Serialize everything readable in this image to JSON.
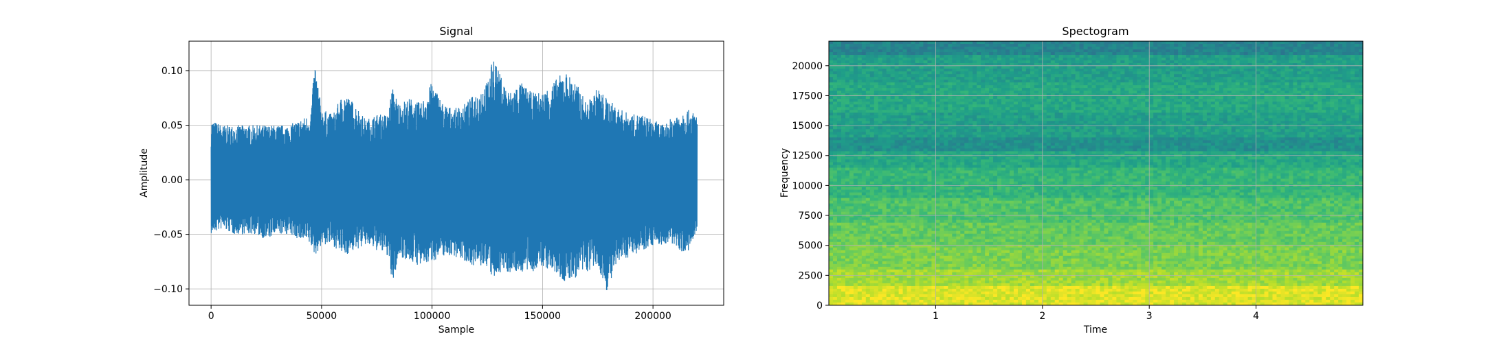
{
  "chart_data": [
    {
      "type": "line",
      "title": "Signal",
      "xlabel": "Sample",
      "ylabel": "Amplitude",
      "xlim": [
        -10000,
        232000
      ],
      "ylim": [
        -0.115,
        0.127
      ],
      "xticks": [
        0,
        50000,
        100000,
        150000,
        200000
      ],
      "xtick_labels": [
        "0",
        "50000",
        "100000",
        "150000",
        "200000"
      ],
      "yticks": [
        -0.1,
        -0.05,
        0.0,
        0.05,
        0.1
      ],
      "ytick_labels": [
        "−0.10",
        "−0.05",
        "0.00",
        "0.05",
        "0.10"
      ],
      "grid": true,
      "line_color": "#1f77b4",
      "series": [
        {
          "x": [
            0,
            5000,
            10000,
            15000,
            20000,
            25000,
            30000,
            35000,
            40000,
            45000,
            47000,
            50000,
            55000,
            60000,
            65000,
            70000,
            75000,
            80000,
            82000,
            85000,
            90000,
            95000,
            100000,
            105000,
            110000,
            115000,
            120000,
            125000,
            128000,
            130000,
            135000,
            140000,
            145000,
            150000,
            155000,
            160000,
            165000,
            170000,
            175000,
            179000,
            185000,
            190000,
            195000,
            200000,
            205000,
            210000,
            215000,
            220000
          ],
          "upper": [
            0.055,
            0.05,
            0.05,
            0.05,
            0.05,
            0.05,
            0.05,
            0.05,
            0.055,
            0.06,
            0.108,
            0.065,
            0.06,
            0.08,
            0.07,
            0.055,
            0.06,
            0.06,
            0.085,
            0.07,
            0.075,
            0.07,
            0.09,
            0.07,
            0.065,
            0.07,
            0.08,
            0.09,
            0.115,
            0.1,
            0.08,
            0.09,
            0.08,
            0.08,
            0.09,
            0.1,
            0.09,
            0.07,
            0.085,
            0.075,
            0.065,
            0.06,
            0.06,
            0.055,
            0.05,
            0.06,
            0.065,
            0.06
          ],
          "lower": [
            -0.05,
            -0.045,
            -0.05,
            -0.05,
            -0.05,
            -0.055,
            -0.05,
            -0.05,
            -0.055,
            -0.06,
            -0.07,
            -0.06,
            -0.06,
            -0.07,
            -0.065,
            -0.06,
            -0.065,
            -0.07,
            -0.098,
            -0.07,
            -0.075,
            -0.08,
            -0.075,
            -0.07,
            -0.07,
            -0.075,
            -0.08,
            -0.08,
            -0.095,
            -0.085,
            -0.085,
            -0.085,
            -0.085,
            -0.08,
            -0.085,
            -0.095,
            -0.09,
            -0.085,
            -0.08,
            -0.102,
            -0.075,
            -0.07,
            -0.065,
            -0.06,
            -0.06,
            -0.06,
            -0.07,
            -0.05
          ]
        }
      ]
    },
    {
      "type": "heatmap",
      "title": "Spectogram",
      "xlabel": "Time",
      "ylabel": "Frequency",
      "xlim": [
        0.0,
        5.0
      ],
      "ylim": [
        0,
        22050
      ],
      "xticks": [
        1,
        2,
        3,
        4
      ],
      "xtick_labels": [
        "1",
        "2",
        "3",
        "4"
      ],
      "yticks": [
        0,
        2500,
        5000,
        7500,
        10000,
        12500,
        15000,
        17500,
        20000
      ],
      "ytick_labels": [
        "0",
        "2500",
        "5000",
        "7500",
        "10000",
        "12500",
        "15000",
        "17500",
        "20000"
      ],
      "grid": true,
      "colormap": "viridis",
      "band_levels": [
        {
          "from": 0,
          "to": 1500,
          "level": 0.95
        },
        {
          "from": 1500,
          "to": 3000,
          "level": 0.86
        },
        {
          "from": 3000,
          "to": 5000,
          "level": 0.8
        },
        {
          "from": 5000,
          "to": 7000,
          "level": 0.76
        },
        {
          "from": 7000,
          "to": 9000,
          "level": 0.72
        },
        {
          "from": 9000,
          "to": 11500,
          "level": 0.66
        },
        {
          "from": 11500,
          "to": 12800,
          "level": 0.6
        },
        {
          "from": 12800,
          "to": 14000,
          "level": 0.5
        },
        {
          "from": 14000,
          "to": 16000,
          "level": 0.56
        },
        {
          "from": 16000,
          "to": 18500,
          "level": 0.6
        },
        {
          "from": 18500,
          "to": 21000,
          "level": 0.56
        },
        {
          "from": 21000,
          "to": 22050,
          "level": 0.45
        }
      ]
    }
  ]
}
